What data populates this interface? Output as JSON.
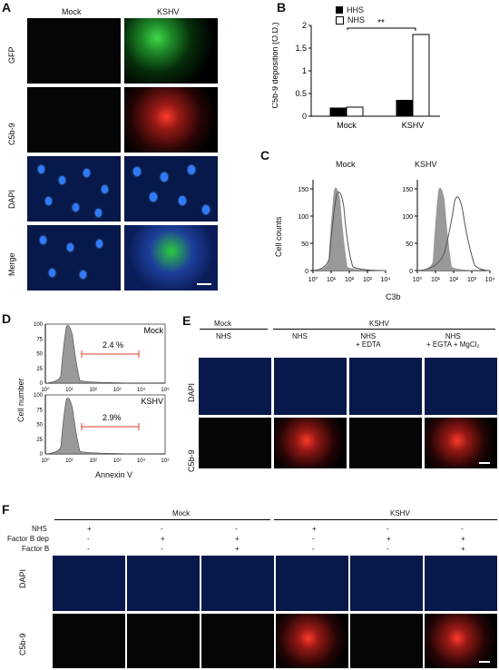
{
  "panels": {
    "A": {
      "letter": "A",
      "columns": [
        "Mock",
        "KSHV"
      ],
      "rows": [
        "GFP",
        "C5b-9",
        "DAPI",
        "Merge"
      ]
    },
    "B": {
      "letter": "B",
      "legend": [
        "HHS",
        "NHS"
      ],
      "significance": "**",
      "yticks": [
        "0",
        "0.5",
        "1",
        "1.5",
        "2"
      ],
      "chart_data": {
        "type": "bar",
        "categories": [
          "Mock",
          "KSHV"
        ],
        "series": [
          {
            "name": "HHS",
            "values": [
              0.18,
              0.35
            ]
          },
          {
            "name": "NHS",
            "values": [
              0.2,
              1.8
            ]
          }
        ],
        "ylabel": "C5b-9 deposition (O.D.)",
        "ylim": [
          0,
          2
        ]
      }
    },
    "C": {
      "letter": "C",
      "titles": [
        "Mock",
        "KSHV"
      ],
      "ylabel": "Cell counts",
      "xlabel": "C3b",
      "yticks": [
        "0",
        "50",
        "100",
        "150"
      ],
      "xticks": [
        "10⁰",
        "10¹",
        "10²",
        "10³",
        "10⁴"
      ]
    },
    "D": {
      "letter": "D",
      "labels": [
        "Mock",
        "KSHV"
      ],
      "percentages": [
        "2.4 %",
        "2.9%"
      ],
      "ylabel": "Cell number",
      "xlabel": "Annexin V",
      "yticks": [
        "0",
        "25",
        "50",
        "75",
        "100"
      ],
      "xticks": [
        "10⁰",
        "10¹",
        "10²",
        "10³",
        "10⁴",
        "10⁵"
      ]
    },
    "E": {
      "letter": "E",
      "groups": [
        "Mock",
        "KSHV"
      ],
      "conditions": [
        "NHS",
        "NHS",
        "NHS\n+ EDTA",
        "NHS\n+ EGTA + MgCl₂"
      ],
      "rows": [
        "DAPI",
        "C5b-9"
      ]
    },
    "F": {
      "letter": "F",
      "groups": [
        "Mock",
        "KSHV"
      ],
      "treatments": [
        "NHS",
        "Factor B dep",
        "Factor B"
      ],
      "signs": [
        [
          "+",
          "-",
          "-"
        ],
        [
          "-",
          "+",
          "-"
        ],
        [
          "-",
          "+",
          "+"
        ],
        [
          "+",
          "-",
          "-"
        ],
        [
          "-",
          "+",
          "-"
        ],
        [
          "-",
          "+",
          "+"
        ]
      ],
      "rows": [
        "DAPI",
        "C5b-9"
      ]
    }
  }
}
